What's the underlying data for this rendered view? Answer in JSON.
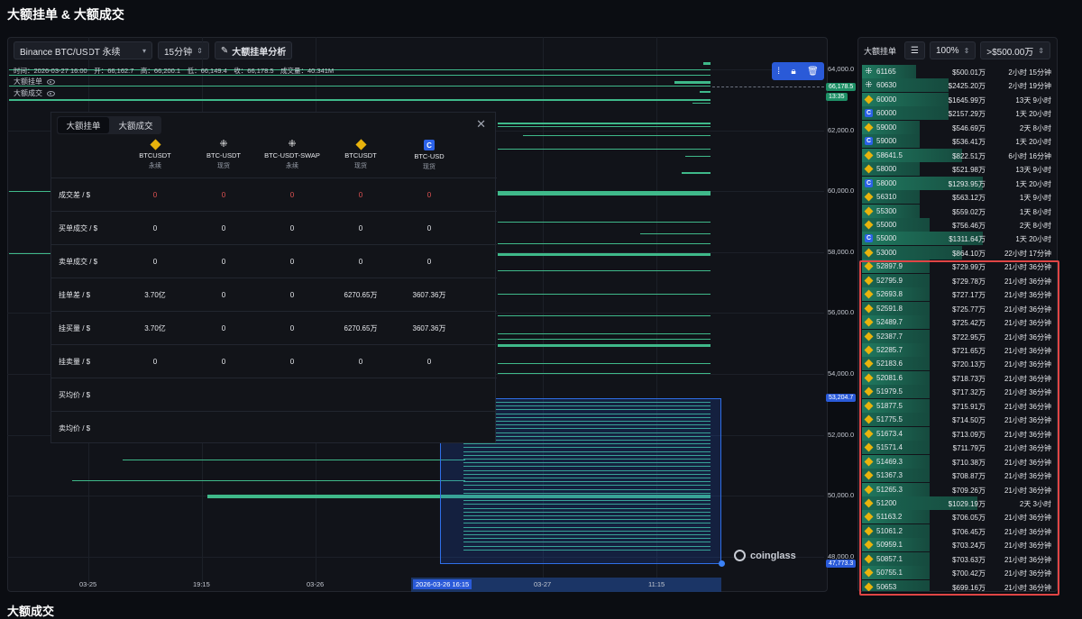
{
  "page_title": "大额挂单 & 大额成交",
  "bottom_title": "大额成交",
  "toolbar": {
    "pair": "Binance BTC/USDT 永续",
    "interval": "15分钟",
    "analysis": "大额挂单分析"
  },
  "ohlc": "时间：2026-03-27 16:00　开：66,162.7　高：66,200.1　低：66,149.4　收：66,178.5　成交量：40.341M",
  "legend": {
    "orders": "大额挂单",
    "trades": "大额成交"
  },
  "y_ticks": [
    "64,000.0",
    "62,000.0",
    "60,000.0",
    "58,000.0",
    "56,000.0",
    "54,000.0",
    "52,000.0",
    "50,000.0",
    "48,000.0"
  ],
  "price_tags": {
    "current": "66,178.5",
    "countdown": "13:35",
    "sel_high": "53,204.7",
    "sel_low": "47,773.3"
  },
  "x_ticks": [
    "03-25",
    "19:15",
    "03-26",
    "03-27",
    "11:15"
  ],
  "x_selected": "2026-03-26 16:15",
  "watermark": "coinglass",
  "popup": {
    "tabs": [
      "大额挂单",
      "大额成交"
    ],
    "exchanges": [
      {
        "name": "BTCUSDT",
        "sub": "永续",
        "icon": "binance"
      },
      {
        "name": "BTC-USDT",
        "sub": "现货",
        "icon": "okx"
      },
      {
        "name": "BTC-USDT-SWAP",
        "sub": "永续",
        "icon": "okx"
      },
      {
        "name": "BTCUSDT",
        "sub": "现货",
        "icon": "binance"
      },
      {
        "name": "BTC-USD",
        "sub": "现货",
        "icon": "coinbase"
      }
    ],
    "rows": [
      {
        "label": "成交差 / $",
        "values": [
          "0",
          "0",
          "0",
          "0",
          "0"
        ],
        "red": true
      },
      {
        "label": "买单成交 / $",
        "values": [
          "0",
          "0",
          "0",
          "0",
          "0"
        ]
      },
      {
        "label": "卖单成交 / $",
        "values": [
          "0",
          "0",
          "0",
          "0",
          "0"
        ]
      },
      {
        "label": "挂单差 / $",
        "values": [
          "3.70亿",
          "0",
          "0",
          "6270.65万",
          "3607.36万"
        ]
      },
      {
        "label": "挂买量 / $",
        "values": [
          "3.70亿",
          "0",
          "0",
          "6270.65万",
          "3607.36万"
        ]
      },
      {
        "label": "挂卖量 / $",
        "values": [
          "0",
          "0",
          "0",
          "0",
          "0"
        ]
      },
      {
        "label": "买均价 / $",
        "values": [
          "",
          "",
          "",
          "",
          ""
        ]
      },
      {
        "label": "卖均价 / $",
        "values": [
          "",
          "",
          "",
          "",
          ""
        ]
      }
    ]
  },
  "right_panel": {
    "title": "大额挂单",
    "percent": "100%",
    "threshold": ">$500.00万",
    "rows": [
      {
        "ex": "okx",
        "price": "61165",
        "value": "$500.01万",
        "time": "2小时 15分钟",
        "w": 0.28
      },
      {
        "ex": "okx",
        "price": "60630",
        "value": "$2425.20万",
        "time": "2小时 19分钟",
        "w": 0.45
      },
      {
        "ex": "binance",
        "price": "60000",
        "value": "$1645.99万",
        "time": "13天 9小时",
        "w": 0.45
      },
      {
        "ex": "coinbase",
        "price": "60000",
        "value": "$2157.29万",
        "time": "1天 20小时",
        "w": 0.45
      },
      {
        "ex": "binance",
        "price": "59000",
        "value": "$546.69万",
        "time": "2天 8小时",
        "w": 0.3
      },
      {
        "ex": "coinbase",
        "price": "59000",
        "value": "$536.41万",
        "time": "1天 20小时",
        "w": 0.3
      },
      {
        "ex": "binance",
        "price": "58641.5",
        "value": "$822.51万",
        "time": "6小时 16分钟",
        "w": 0.52
      },
      {
        "ex": "binance",
        "price": "58000",
        "value": "$521.98万",
        "time": "13天 9小时",
        "w": 0.3
      },
      {
        "ex": "coinbase",
        "price": "58000",
        "value": "$1293.95万",
        "time": "1天 20小时",
        "w": 0.63
      },
      {
        "ex": "binance",
        "price": "56310",
        "value": "$563.12万",
        "time": "1天 9小时",
        "w": 0.3
      },
      {
        "ex": "binance",
        "price": "55300",
        "value": "$559.02万",
        "time": "1天 8小时",
        "w": 0.3
      },
      {
        "ex": "binance",
        "price": "55000",
        "value": "$756.46万",
        "time": "2天 8小时",
        "w": 0.35
      },
      {
        "ex": "coinbase",
        "price": "55000",
        "value": "$1311.64万",
        "time": "1天 20小时",
        "w": 0.63
      },
      {
        "ex": "binance",
        "price": "53000",
        "value": "$864.10万",
        "time": "22小时 17分钟",
        "w": 0.52
      },
      {
        "ex": "binance",
        "price": "52897.9",
        "value": "$729.99万",
        "time": "21小时 36分钟",
        "w": 0.35
      },
      {
        "ex": "binance",
        "price": "52795.9",
        "value": "$729.78万",
        "time": "21小时 36分钟",
        "w": 0.35
      },
      {
        "ex": "binance",
        "price": "52693.8",
        "value": "$727.17万",
        "time": "21小时 36分钟",
        "w": 0.35
      },
      {
        "ex": "binance",
        "price": "52591.8",
        "value": "$725.77万",
        "time": "21小时 36分钟",
        "w": 0.35
      },
      {
        "ex": "binance",
        "price": "52489.7",
        "value": "$725.42万",
        "time": "21小时 36分钟",
        "w": 0.35
      },
      {
        "ex": "binance",
        "price": "52387.7",
        "value": "$722.95万",
        "time": "21小时 36分钟",
        "w": 0.35
      },
      {
        "ex": "binance",
        "price": "52285.7",
        "value": "$721.65万",
        "time": "21小时 36分钟",
        "w": 0.35
      },
      {
        "ex": "binance",
        "price": "52183.6",
        "value": "$720.13万",
        "time": "21小时 36分钟",
        "w": 0.35
      },
      {
        "ex": "binance",
        "price": "52081.6",
        "value": "$718.73万",
        "time": "21小时 36分钟",
        "w": 0.35
      },
      {
        "ex": "binance",
        "price": "51979.5",
        "value": "$717.32万",
        "time": "21小时 36分钟",
        "w": 0.35
      },
      {
        "ex": "binance",
        "price": "51877.5",
        "value": "$715.91万",
        "time": "21小时 36分钟",
        "w": 0.35
      },
      {
        "ex": "binance",
        "price": "51775.5",
        "value": "$714.50万",
        "time": "21小时 36分钟",
        "w": 0.35
      },
      {
        "ex": "binance",
        "price": "51673.4",
        "value": "$713.09万",
        "time": "21小时 36分钟",
        "w": 0.35
      },
      {
        "ex": "binance",
        "price": "51571.4",
        "value": "$711.79万",
        "time": "21小时 36分钟",
        "w": 0.35
      },
      {
        "ex": "binance",
        "price": "51469.3",
        "value": "$710.38万",
        "time": "21小时 36分钟",
        "w": 0.35
      },
      {
        "ex": "binance",
        "price": "51367.3",
        "value": "$708.87万",
        "time": "21小时 36分钟",
        "w": 0.35
      },
      {
        "ex": "binance",
        "price": "51265.3",
        "value": "$709.26万",
        "time": "21小时 36分钟",
        "w": 0.35
      },
      {
        "ex": "binance",
        "price": "51200",
        "value": "$1029.19万",
        "time": "2天 3小时",
        "w": 0.6
      },
      {
        "ex": "binance",
        "price": "51163.2",
        "value": "$706.05万",
        "time": "21小时 36分钟",
        "w": 0.35
      },
      {
        "ex": "binance",
        "price": "51061.2",
        "value": "$706.45万",
        "time": "21小时 36分钟",
        "w": 0.35
      },
      {
        "ex": "binance",
        "price": "50959.1",
        "value": "$703.24万",
        "time": "21小时 36分钟",
        "w": 0.35
      },
      {
        "ex": "binance",
        "price": "50857.1",
        "value": "$703.63万",
        "time": "21小时 36分钟",
        "w": 0.35
      },
      {
        "ex": "binance",
        "price": "50755.1",
        "value": "$700.42万",
        "time": "21小时 36分钟",
        "w": 0.35
      },
      {
        "ex": "binance",
        "price": "50653",
        "value": "$699.16万",
        "time": "21小时 36分钟",
        "w": 0.35
      }
    ]
  }
}
